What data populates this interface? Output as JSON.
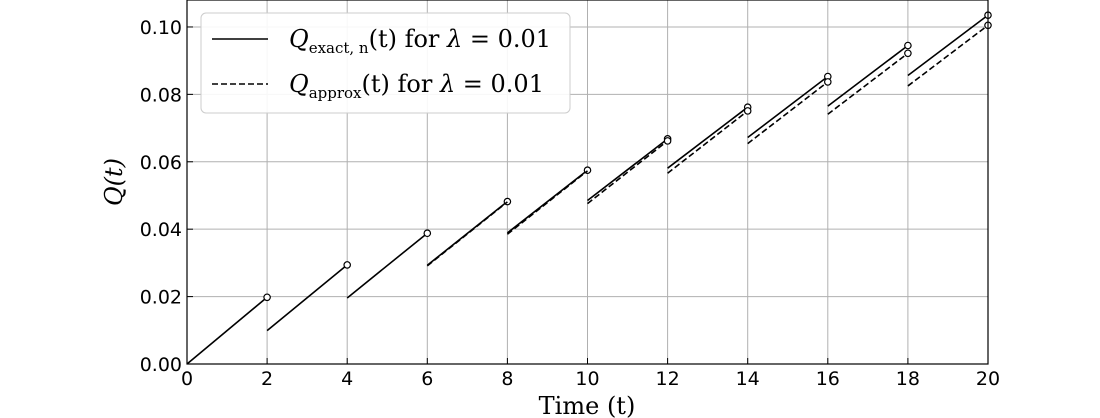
{
  "chart_data": {
    "type": "line",
    "title": "",
    "xlabel": "Time (t)",
    "ylabel": "Q(t)",
    "xlim": [
      0,
      20
    ],
    "ylim": [
      0,
      0.108
    ],
    "xticks": [
      0,
      2,
      4,
      6,
      8,
      10,
      12,
      14,
      16,
      18,
      20
    ],
    "yticks": [
      0.0,
      0.02,
      0.04,
      0.06,
      0.08,
      0.1
    ],
    "ytick_labels": [
      "0.00",
      "0.02",
      "0.04",
      "0.06",
      "0.08",
      "0.10"
    ],
    "grid": true,
    "legend_position": "top-left",
    "legend": [
      {
        "math": "Q",
        "sub": "exact, n",
        "arg": "(t)",
        "text": " for ",
        "lambda": "λ",
        "eq": " = 0.01",
        "style": "solid"
      },
      {
        "math": "Q",
        "sub": "approx",
        "arg": "(t)",
        "text": " for ",
        "lambda": "λ",
        "eq": " = 0.01",
        "style": "dashed"
      }
    ],
    "series": [
      {
        "name": "Q_exact,n(t) for λ = 0.01",
        "style": "solid",
        "segments": [
          [
            [
              0,
              0.0
            ],
            [
              2,
              0.0198
            ]
          ],
          [
            [
              2,
              0.0099
            ],
            [
              4,
              0.0294
            ]
          ],
          [
            [
              4,
              0.0196
            ],
            [
              6,
              0.0388
            ]
          ],
          [
            [
              6,
              0.0293
            ],
            [
              8,
              0.0482
            ]
          ],
          [
            [
              8,
              0.0389
            ],
            [
              10,
              0.0575
            ]
          ],
          [
            [
              10,
              0.0485
            ],
            [
              12,
              0.0668
            ]
          ],
          [
            [
              12,
              0.0581
            ],
            [
              14,
              0.0762
            ]
          ],
          [
            [
              14,
              0.0672
            ],
            [
              16,
              0.0853
            ]
          ],
          [
            [
              16,
              0.0765
            ],
            [
              18,
              0.0945
            ]
          ],
          [
            [
              18,
              0.0856
            ],
            [
              20,
              0.1035
            ]
          ]
        ],
        "endpoints": [
          [
            2,
            0.0198
          ],
          [
            4,
            0.0294
          ],
          [
            6,
            0.0388
          ],
          [
            8,
            0.0482
          ],
          [
            10,
            0.0575
          ],
          [
            12,
            0.0668
          ],
          [
            14,
            0.0762
          ],
          [
            16,
            0.0853
          ],
          [
            18,
            0.0945
          ],
          [
            20,
            0.1035
          ]
        ]
      },
      {
        "name": "Q_approx(t) for λ = 0.01",
        "style": "dashed",
        "segments": [
          [
            [
              6,
              0.0291
            ],
            [
              8,
              0.0481
            ]
          ],
          [
            [
              8,
              0.0385
            ],
            [
              10,
              0.0573
            ]
          ],
          [
            [
              10,
              0.0476
            ],
            [
              12,
              0.0662
            ]
          ],
          [
            [
              12,
              0.0566
            ],
            [
              14,
              0.0751
            ]
          ],
          [
            [
              14,
              0.0654
            ],
            [
              16,
              0.0837
            ]
          ],
          [
            [
              16,
              0.0741
            ],
            [
              18,
              0.0922
            ]
          ],
          [
            [
              18,
              0.0825
            ],
            [
              20,
              0.1005
            ]
          ]
        ],
        "endpoints": [
          [
            12,
            0.0662
          ],
          [
            14,
            0.0751
          ],
          [
            16,
            0.0837
          ],
          [
            18,
            0.0922
          ],
          [
            20,
            0.1005
          ]
        ]
      }
    ]
  }
}
